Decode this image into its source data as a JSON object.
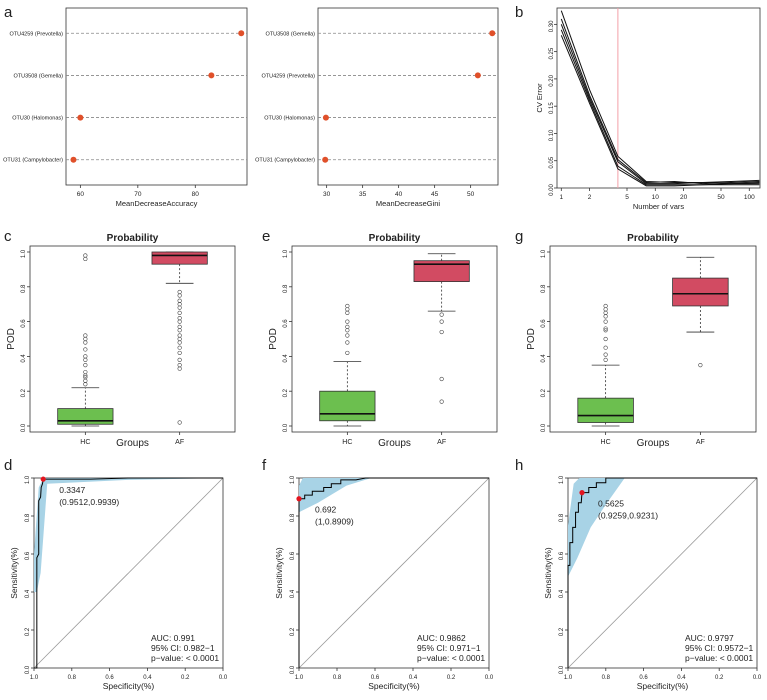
{
  "colors": {
    "dot": "#E0502A",
    "box_hc": "#6CBF4F",
    "box_af": "#D24B62",
    "roc_band": "#A8D3E6",
    "roc_line": "#000000",
    "roc_point": "#E3141E",
    "cv_vline": "#F4A0A8",
    "grid": "#9a9a9a"
  },
  "chart_data": [
    {
      "panel": "a",
      "type": "scatter",
      "subtype": "dotchart",
      "categories": [
        "OTU4259 (Prevotella)",
        "OTU3508 (Gemella)",
        "OTU30 (Halomonas)",
        "OTU31 (Campylobacter)"
      ],
      "values": [
        88.0,
        82.8,
        60.0,
        58.8
      ],
      "xlabel": "MeanDecreaseAccuracy",
      "xlim": [
        57.5,
        89.0
      ],
      "xticks": [
        60,
        70,
        80
      ]
    },
    {
      "panel": "a2",
      "type": "scatter",
      "subtype": "dotchart",
      "categories": [
        "OTU3508 (Gemella)",
        "OTU4259 (Prevotella)",
        "OTU30 (Halomonas)",
        "OTU31 (Campylobacter)"
      ],
      "values": [
        53.0,
        51.0,
        29.9,
        29.8
      ],
      "xlabel": "MeanDecreaseGini",
      "xlim": [
        28.8,
        53.8
      ],
      "xticks": [
        30,
        35,
        40,
        45,
        50
      ]
    },
    {
      "panel": "b",
      "type": "line",
      "xlabel": "Number of vars",
      "ylabel": "CV Error",
      "xscale": "log",
      "xlim": [
        0.9,
        130
      ],
      "ylim": [
        0,
        0.33
      ],
      "xticks": [
        1,
        2,
        5,
        10,
        20,
        50,
        100
      ],
      "yticks": [
        0.0,
        0.05,
        0.1,
        0.15,
        0.2,
        0.25,
        0.3
      ],
      "vline": 4,
      "x": [
        1,
        2,
        4,
        8,
        16,
        32,
        64,
        128
      ],
      "series": [
        {
          "values": [
            0.325,
            0.18,
            0.058,
            0.012,
            0.01,
            0.01,
            0.012,
            0.014
          ]
        },
        {
          "values": [
            0.31,
            0.17,
            0.052,
            0.01,
            0.012,
            0.008,
            0.01,
            0.012
          ]
        },
        {
          "values": [
            0.3,
            0.165,
            0.048,
            0.008,
            0.008,
            0.01,
            0.008,
            0.01
          ]
        },
        {
          "values": [
            0.29,
            0.16,
            0.04,
            0.006,
            0.006,
            0.006,
            0.008,
            0.008
          ]
        },
        {
          "values": [
            0.28,
            0.155,
            0.035,
            0.004,
            0.004,
            0.006,
            0.006,
            0.006
          ]
        }
      ]
    },
    {
      "panel": "c",
      "type": "bar",
      "subtype": "boxplot",
      "title": "Probability",
      "xlabel": "Groups",
      "ylabel": "POD",
      "ylim": [
        0,
        1
      ],
      "yticks": [
        0.0,
        0.2,
        0.4,
        0.6,
        0.8,
        1.0
      ],
      "categories": [
        "HC",
        "AF"
      ],
      "boxes": [
        {
          "whislo": 0.0,
          "q1": 0.01,
          "med": 0.03,
          "q3": 0.1,
          "whishi": 0.22,
          "fliers": [
            0.24,
            0.26,
            0.28,
            0.29,
            0.31,
            0.35,
            0.38,
            0.4,
            0.44,
            0.48,
            0.5,
            0.52,
            0.96,
            0.98
          ]
        },
        {
          "whislo": 0.82,
          "q1": 0.93,
          "med": 0.98,
          "q3": 1.0,
          "whishi": 1.0,
          "fliers": [
            0.02,
            0.33,
            0.35,
            0.38,
            0.42,
            0.45,
            0.48,
            0.5,
            0.52,
            0.55,
            0.57,
            0.6,
            0.62,
            0.65,
            0.68,
            0.7,
            0.72,
            0.75,
            0.77
          ]
        }
      ]
    },
    {
      "panel": "e",
      "type": "bar",
      "subtype": "boxplot",
      "title": "Probability",
      "xlabel": "Groups",
      "ylabel": "POD",
      "ylim": [
        0,
        1
      ],
      "yticks": [
        0.0,
        0.2,
        0.4,
        0.6,
        0.8,
        1.0
      ],
      "categories": [
        "HC",
        "AF"
      ],
      "boxes": [
        {
          "whislo": 0.0,
          "q1": 0.03,
          "med": 0.07,
          "q3": 0.2,
          "whishi": 0.37,
          "fliers": [
            0.42,
            0.48,
            0.52,
            0.55,
            0.57,
            0.6,
            0.65,
            0.67,
            0.69
          ]
        },
        {
          "whislo": 0.66,
          "q1": 0.83,
          "med": 0.93,
          "q3": 0.95,
          "whishi": 0.99,
          "fliers": [
            0.14,
            0.27,
            0.54,
            0.6,
            0.64
          ]
        }
      ]
    },
    {
      "panel": "g",
      "type": "bar",
      "subtype": "boxplot",
      "title": "Probability",
      "xlabel": "Groups",
      "ylabel": "POD",
      "ylim": [
        0,
        1
      ],
      "yticks": [
        0.0,
        0.2,
        0.4,
        0.6,
        0.8,
        1.0
      ],
      "categories": [
        "HC",
        "AF"
      ],
      "boxes": [
        {
          "whislo": 0.0,
          "q1": 0.02,
          "med": 0.06,
          "q3": 0.16,
          "whishi": 0.35,
          "fliers": [
            0.38,
            0.41,
            0.45,
            0.5,
            0.55,
            0.56,
            0.6,
            0.63,
            0.65,
            0.67,
            0.69
          ]
        },
        {
          "whislo": 0.54,
          "q1": 0.69,
          "med": 0.76,
          "q3": 0.85,
          "whishi": 0.97,
          "fliers": [
            0.35
          ]
        }
      ]
    },
    {
      "panel": "d",
      "type": "line",
      "subtype": "roc",
      "xlabel": "Specificity(%)",
      "ylabel": "Sensitivity(%)",
      "xlim": [
        1.0,
        0.0
      ],
      "ylim": [
        0.0,
        1.0
      ],
      "ticks": [
        0.0,
        0.2,
        0.4,
        0.6,
        0.8,
        1.0
      ],
      "threshold": "0.3347",
      "threshold_ci": "(0.9512,0.9939)",
      "point": [
        0.9512,
        0.9939
      ],
      "curve": [
        [
          1.0,
          0.0
        ],
        [
          0.985,
          0.0
        ],
        [
          0.985,
          0.58
        ],
        [
          0.975,
          0.6
        ],
        [
          0.975,
          0.88
        ],
        [
          0.965,
          0.9
        ],
        [
          0.962,
          0.95
        ],
        [
          0.955,
          0.97
        ],
        [
          0.951,
          0.994
        ],
        [
          0.7,
          0.994
        ],
        [
          0.5,
          1.0
        ],
        [
          0.0,
          1.0
        ]
      ],
      "band_upper": [
        [
          1.0,
          0.6
        ],
        [
          0.975,
          0.95
        ],
        [
          0.95,
          1.0
        ],
        [
          0.0,
          1.0
        ]
      ],
      "band_lower": [
        [
          0.0,
          1.0
        ],
        [
          0.5,
          0.99
        ],
        [
          0.93,
          0.97
        ],
        [
          0.95,
          0.7
        ],
        [
          0.965,
          0.5
        ],
        [
          0.985,
          0.4
        ],
        [
          1.0,
          0.4
        ]
      ],
      "auc_text": "AUC: 0.991",
      "ci_text": "95% CI: 0.982−1",
      "p_text": "p−value: < 0.0001"
    },
    {
      "panel": "f",
      "type": "line",
      "subtype": "roc",
      "xlabel": "Specificity(%)",
      "ylabel": "Sensitivity(%)",
      "xlim": [
        1.0,
        0.0
      ],
      "ylim": [
        0.0,
        1.0
      ],
      "ticks": [
        0.0,
        0.2,
        0.4,
        0.6,
        0.8,
        1.0
      ],
      "threshold": "0.692",
      "threshold_ci": "(1,0.8909)",
      "point": [
        1.0,
        0.8909
      ],
      "curve": [
        [
          1.0,
          0.0
        ],
        [
          1.0,
          0.8909
        ],
        [
          0.97,
          0.8909
        ],
        [
          0.97,
          0.91
        ],
        [
          0.93,
          0.91
        ],
        [
          0.93,
          0.93
        ],
        [
          0.87,
          0.93
        ],
        [
          0.87,
          0.95
        ],
        [
          0.83,
          0.95
        ],
        [
          0.83,
          0.97
        ],
        [
          0.78,
          0.97
        ],
        [
          0.78,
          0.99
        ],
        [
          0.7,
          0.99
        ],
        [
          0.65,
          1.0
        ],
        [
          0.0,
          1.0
        ]
      ],
      "band_upper": [
        [
          1.0,
          0.96
        ],
        [
          0.98,
          1.0
        ],
        [
          0.0,
          1.0
        ]
      ],
      "band_lower": [
        [
          0.0,
          1.0
        ],
        [
          0.62,
          1.0
        ],
        [
          0.75,
          0.96
        ],
        [
          0.9,
          0.87
        ],
        [
          1.0,
          0.82
        ]
      ],
      "auc_text": "AUC: 0.9862",
      "ci_text": "95% CI: 0.971−1",
      "p_text": "p−value: < 0.0001"
    },
    {
      "panel": "h",
      "type": "line",
      "subtype": "roc",
      "xlabel": "Specificity(%)",
      "ylabel": "Sensitivity(%)",
      "xlim": [
        1.0,
        0.0
      ],
      "ylim": [
        0.0,
        1.0
      ],
      "ticks": [
        0.0,
        0.2,
        0.4,
        0.6,
        0.8,
        1.0
      ],
      "threshold": "0.5625",
      "threshold_ci": "(0.9259,0.9231)",
      "point": [
        0.9259,
        0.9231
      ],
      "curve": [
        [
          1.0,
          0.0
        ],
        [
          1.0,
          0.54
        ],
        [
          0.99,
          0.54
        ],
        [
          0.99,
          0.66
        ],
        [
          0.975,
          0.66
        ],
        [
          0.975,
          0.74
        ],
        [
          0.96,
          0.74
        ],
        [
          0.96,
          0.82
        ],
        [
          0.945,
          0.82
        ],
        [
          0.945,
          0.87
        ],
        [
          0.93,
          0.87
        ],
        [
          0.926,
          0.923
        ],
        [
          0.89,
          0.923
        ],
        [
          0.89,
          0.95
        ],
        [
          0.85,
          0.95
        ],
        [
          0.85,
          0.975
        ],
        [
          0.8,
          0.975
        ],
        [
          0.8,
          1.0
        ],
        [
          0.0,
          1.0
        ]
      ],
      "band_upper": [
        [
          1.0,
          0.75
        ],
        [
          0.97,
          0.97
        ],
        [
          0.94,
          1.0
        ],
        [
          0.0,
          1.0
        ]
      ],
      "band_lower": [
        [
          0.0,
          1.0
        ],
        [
          0.7,
          1.0
        ],
        [
          0.8,
          0.86
        ],
        [
          0.88,
          0.74
        ],
        [
          0.95,
          0.58
        ],
        [
          1.0,
          0.48
        ]
      ],
      "auc_text": "AUC: 0.9797",
      "ci_text": "95% CI: 0.9572−1",
      "p_text": "p−value: < 0.0001"
    }
  ]
}
